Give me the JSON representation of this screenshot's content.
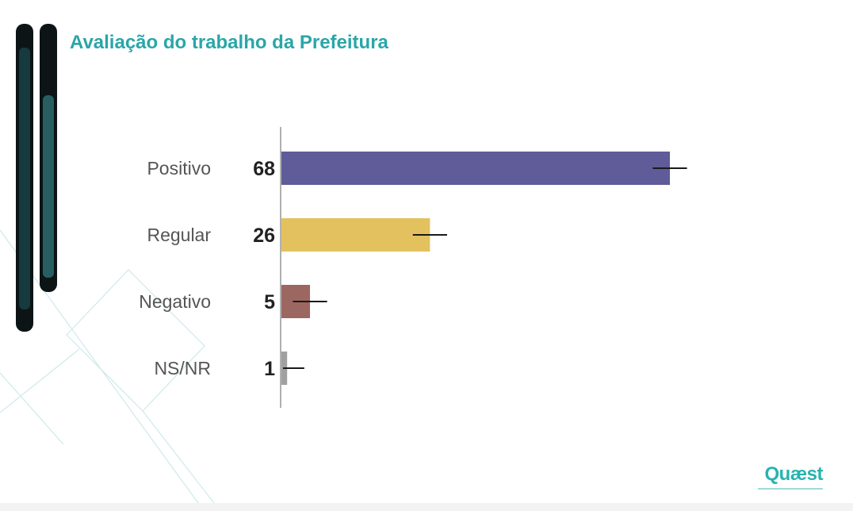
{
  "slide": {
    "logo_text": "Quæst"
  },
  "colors": {
    "title": "#2aa6a8",
    "logo": "#27b3b0"
  },
  "chart_data": {
    "type": "bar",
    "orientation": "horizontal",
    "title": "Avaliação do trabalho da Prefeitura",
    "categories": [
      "Positivo",
      "Regular",
      "Negativo",
      "NS/NR"
    ],
    "values": [
      68,
      26,
      5,
      1
    ],
    "value_labels": [
      "68",
      "26",
      "5",
      "1"
    ],
    "bar_colors": [
      "#5f5c99",
      "#e3c15f",
      "#9c6761",
      "#a0a0a0"
    ],
    "error_bars": true,
    "xlim": [
      0,
      100
    ],
    "grid": false,
    "legend": "none"
  }
}
